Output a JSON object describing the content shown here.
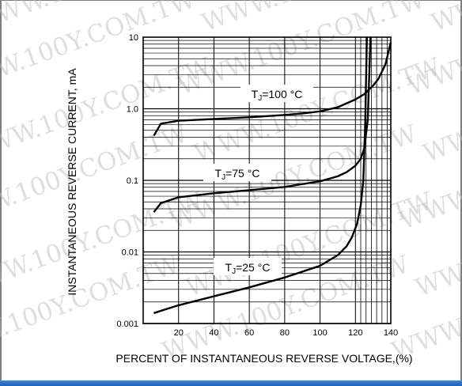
{
  "chart_data": {
    "type": "line",
    "xlabel": "PERCENT OF INSTANTANEOUS REVERSE VOLTAGE,(%)",
    "ylabel": "INSTANTANEOUS REVERSE CURRENT, mA",
    "xlim": [
      0,
      140
    ],
    "ylim": [
      0.001,
      10
    ],
    "yscale": "log",
    "grid": true,
    "x_ticks": [
      "20",
      "40",
      "60",
      "80",
      "100",
      "120",
      "140"
    ],
    "y_ticks": [
      "0.001",
      "0.01",
      "0.1",
      "1.0",
      "10"
    ],
    "series": [
      {
        "name": "TJ=100 °C",
        "label_main": "T",
        "label_sub": "J",
        "label_rest": "=100 °C",
        "x": [
          6,
          10,
          20,
          40,
          60,
          80,
          90,
          100,
          110,
          120,
          125,
          130,
          133,
          137,
          140
        ],
        "y": [
          0.42,
          0.62,
          0.68,
          0.72,
          0.76,
          0.82,
          0.86,
          0.92,
          1.05,
          1.35,
          1.6,
          2.1,
          2.6,
          4.2,
          8.5
        ]
      },
      {
        "name": "TJ=75 °C",
        "label_main": "T",
        "label_sub": "J",
        "label_rest": "=75 °C",
        "x": [
          6,
          10,
          20,
          40,
          60,
          80,
          100,
          110,
          115,
          120,
          123,
          125,
          127,
          128.5
        ],
        "y": [
          0.036,
          0.048,
          0.058,
          0.066,
          0.073,
          0.081,
          0.097,
          0.114,
          0.13,
          0.16,
          0.2,
          0.28,
          0.7,
          10
        ]
      },
      {
        "name": "TJ=25 °C",
        "label_main": "T",
        "label_sub": "J",
        "label_rest": "=25 °C",
        "x": [
          6,
          20,
          40,
          60,
          80,
          100,
          110,
          115,
          118,
          121,
          123,
          124.5,
          125.5,
          126.5
        ],
        "y": [
          0.0014,
          0.0018,
          0.0024,
          0.0032,
          0.0044,
          0.0064,
          0.009,
          0.012,
          0.016,
          0.025,
          0.045,
          0.1,
          0.6,
          10
        ]
      }
    ]
  },
  "watermark": "WWW.100Y.COM.TW",
  "colors": {
    "line": "#000000",
    "bottom_bar": "#2a6fc4"
  }
}
